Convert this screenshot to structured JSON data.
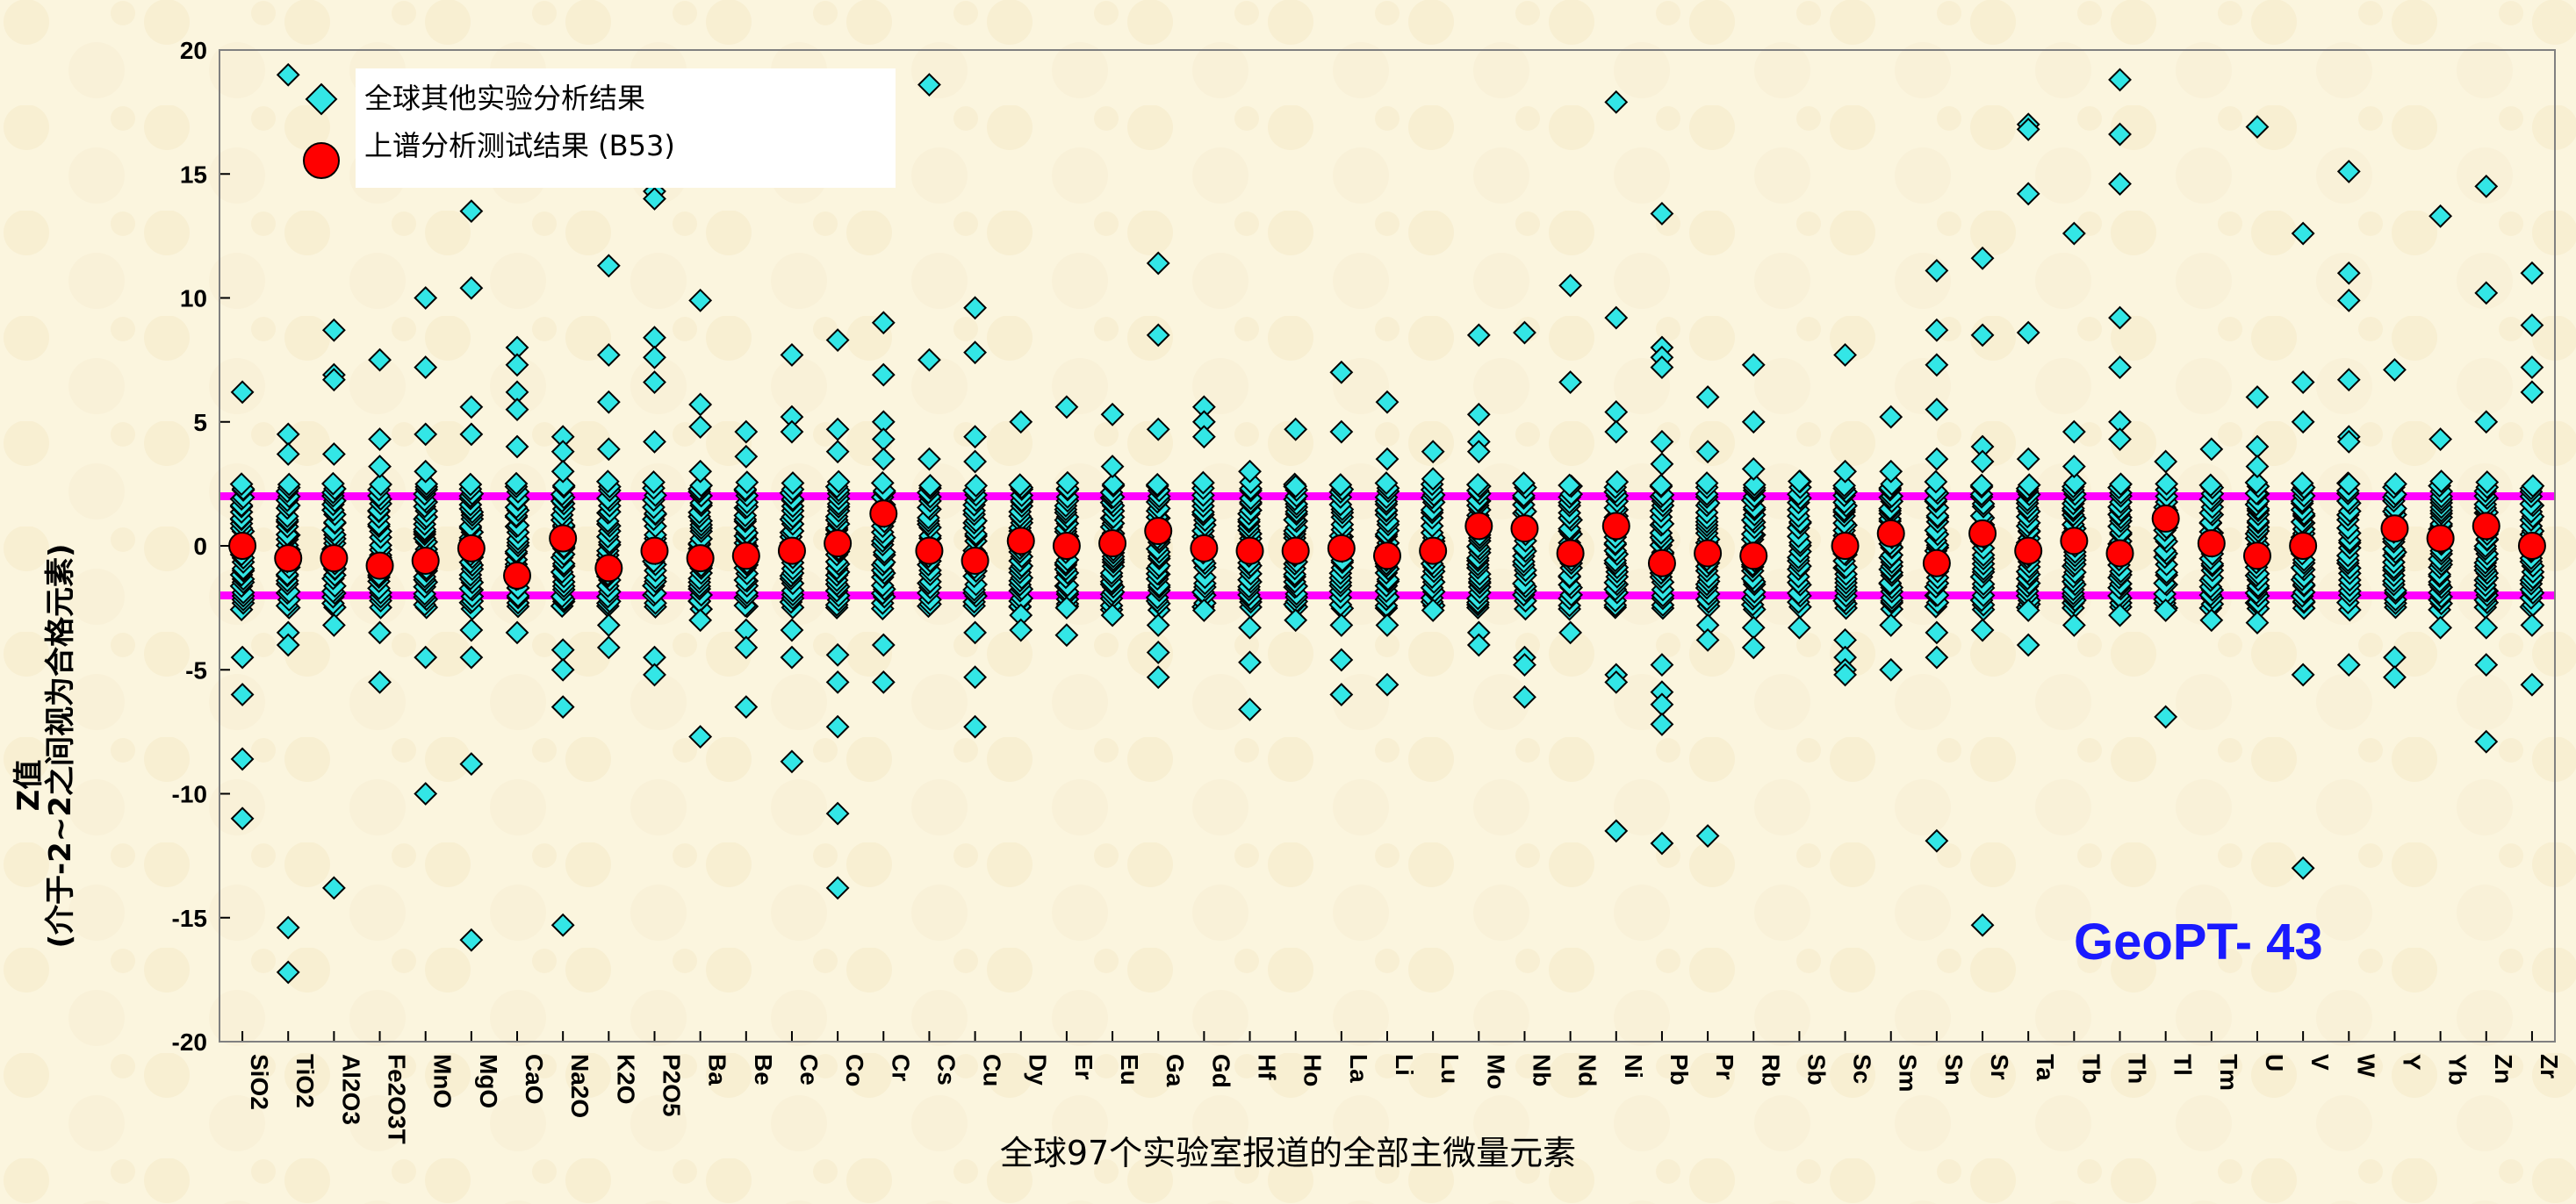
{
  "chart_data": {
    "type": "scatter",
    "ylabel_line1": "Z值",
    "ylabel_line2": "(介于-2~2之间视为合格元素)",
    "xlabel": "全球97个实验室报道的全部主微量元素",
    "annotation": "GeoPT- 43",
    "ylim": [
      -20,
      20
    ],
    "yticks": [
      20,
      15,
      10,
      5,
      0,
      -5,
      -10,
      -15,
      -20
    ],
    "limit_lines": [
      2,
      -2
    ],
    "grid": false,
    "legend_position": "top-left",
    "categories": [
      "SiO2",
      "TiO2",
      "Al2O3",
      "Fe2O3T",
      "MnO",
      "MgO",
      "CaO",
      "Na2O",
      "K2O",
      "P2O5",
      "Ba",
      "Be",
      "Ce",
      "Co",
      "Cr",
      "Cs",
      "Cu",
      "Dy",
      "Er",
      "Eu",
      "Ga",
      "Gd",
      "Hf",
      "Ho",
      "La",
      "Li",
      "Lu",
      "Mo",
      "Nb",
      "Nd",
      "Ni",
      "Pb",
      "Pr",
      "Rb",
      "Sb",
      "Sc",
      "Sm",
      "Sn",
      "Sr",
      "Ta",
      "Tb",
      "Th",
      "Tl",
      "Tm",
      "U",
      "V",
      "W",
      "Y",
      "Yb",
      "Zn",
      "Zr"
    ],
    "series": [
      {
        "name": "全球其他实验分析结果",
        "color": "#33e6e6",
        "marker": "diamond",
        "outliers": [
          [
            6.2,
            -4.5,
            -6,
            -8.6,
            -11
          ],
          [
            19,
            4.5,
            3.7,
            -3.5,
            -4,
            -15.4,
            -17.2
          ],
          [
            8.7,
            6.9,
            6.7,
            3.7,
            -3.2,
            -13.8
          ],
          [
            7.5,
            4.3,
            3.2,
            -3.5,
            -5.5
          ],
          [
            10,
            7.2,
            4.5,
            3,
            -4.5,
            -10
          ],
          [
            13.5,
            10.4,
            5.6,
            4.5,
            -3.4,
            -4.5,
            -8.8,
            -15.9
          ],
          [
            8,
            7.3,
            6.2,
            5.5,
            4,
            -3.5
          ],
          [
            4.4,
            3.8,
            3,
            -4.2,
            -5,
            -6.5,
            -15.3
          ],
          [
            11.3,
            7.7,
            5.8,
            3.9,
            -3.2,
            -4.1
          ],
          [
            14.3,
            14,
            8.4,
            7.6,
            6.6,
            4.2,
            -4.5,
            -5.2
          ],
          [
            9.9,
            5.7,
            4.8,
            3,
            -3,
            -7.7
          ],
          [
            4.6,
            3.6,
            -3.4,
            -4.1,
            -6.5
          ],
          [
            7.7,
            5.2,
            4.6,
            -3.4,
            -4.5,
            -8.7
          ],
          [
            8.3,
            4.7,
            3.8,
            -4.4,
            -5.5,
            -7.3,
            -10.8,
            -13.8
          ],
          [
            9,
            6.9,
            5,
            4.3,
            3.5,
            -4,
            -5.5
          ],
          [
            18.6,
            7.5,
            3.5
          ],
          [
            9.6,
            7.8,
            4.4,
            3.4,
            -3.5,
            -5.3,
            -7.3
          ],
          [
            5,
            -2.8,
            -3.4
          ],
          [
            5.6,
            -2.5,
            -3.6
          ],
          [
            5.3,
            3.2,
            -2.8
          ],
          [
            11.4,
            8.5,
            4.7,
            -3.2,
            -4.3,
            -5.3
          ],
          [
            5.6,
            5,
            4.4,
            -2.6
          ],
          [
            3,
            -3.3,
            -4.7,
            -6.6
          ],
          [
            4.7,
            2.4,
            -3
          ],
          [
            7,
            4.6,
            -3.2,
            -4.6,
            -6
          ],
          [
            5.8,
            3.5,
            -3.2,
            -5.6
          ],
          [
            3.8,
            2.7,
            -2.6
          ],
          [
            8.5,
            5.3,
            4.2,
            3.8,
            -3.5,
            -4
          ],
          [
            8.6,
            -4.5,
            -4.8,
            -6.1
          ],
          [
            10.5,
            6.6,
            -3.5
          ],
          [
            17.9,
            9.2,
            5.4,
            4.6,
            -5.2,
            -5.5,
            -11.5
          ],
          [
            13.4,
            8,
            7.6,
            7.2,
            4.2,
            3.3,
            -4.8,
            -5.9,
            -6.4,
            -7.2,
            -12
          ],
          [
            6,
            3.8,
            -3.2,
            -3.8,
            -11.7
          ],
          [
            7.3,
            5,
            3.1,
            -3.3,
            -4.1
          ],
          [
            2.6,
            -3.3
          ],
          [
            7.7,
            3,
            -3.8,
            -4.5,
            -5,
            -5.2
          ],
          [
            5.2,
            3,
            -3.2,
            -5
          ],
          [
            11.1,
            8.7,
            7.3,
            5.5,
            3.5,
            -3.5,
            -4.5,
            -11.9
          ],
          [
            11.6,
            8.5,
            4,
            3.4,
            -3.4,
            -15.3
          ],
          [
            17,
            16.8,
            14.2,
            8.6,
            3.5,
            -2.6,
            -4
          ],
          [
            12.6,
            4.6,
            3.2,
            -3.2
          ],
          [
            18.8,
            16.6,
            14.6,
            9.2,
            7.2,
            5,
            4.3,
            -2.8
          ],
          [
            3.4,
            -2.6,
            -6.9
          ],
          [
            3.9,
            -3
          ],
          [
            16.9,
            6,
            4,
            3.2,
            -3.1
          ],
          [
            12.6,
            6.6,
            5,
            -5.2,
            -13
          ],
          [
            15.1,
            11,
            9.9,
            6.7,
            4.4,
            4.2,
            2.5,
            -4.8
          ],
          [
            7.1,
            -4.5,
            -5.3
          ],
          [
            13.3,
            4.3,
            -3.3
          ],
          [
            14.5,
            10.2,
            5,
            -3.3,
            -4.8,
            -7.9
          ],
          [
            11,
            8.9,
            7.2,
            6.2,
            -3.2,
            -5.6
          ]
        ]
      },
      {
        "name": "上谱分析测试结果 (B53)",
        "color": "#ff0000",
        "marker": "circle",
        "values": [
          0,
          -0.5,
          -0.5,
          -0.8,
          -0.6,
          -0.1,
          -1.2,
          0.3,
          -0.9,
          -0.2,
          -0.5,
          -0.4,
          -0.2,
          0.1,
          1.3,
          -0.2,
          -0.6,
          0.2,
          0,
          0.1,
          0.6,
          -0.1,
          -0.2,
          -0.2,
          -0.1,
          -0.4,
          -0.2,
          0.8,
          0.7,
          -0.3,
          0.8,
          -0.7,
          -0.3,
          -0.4,
          null,
          0,
          0.5,
          -0.7,
          0.5,
          -0.2,
          0.2,
          -0.3,
          1.1,
          0.1,
          -0.4,
          0,
          null,
          0.7,
          0.3,
          0.8,
          0
        ]
      }
    ]
  }
}
